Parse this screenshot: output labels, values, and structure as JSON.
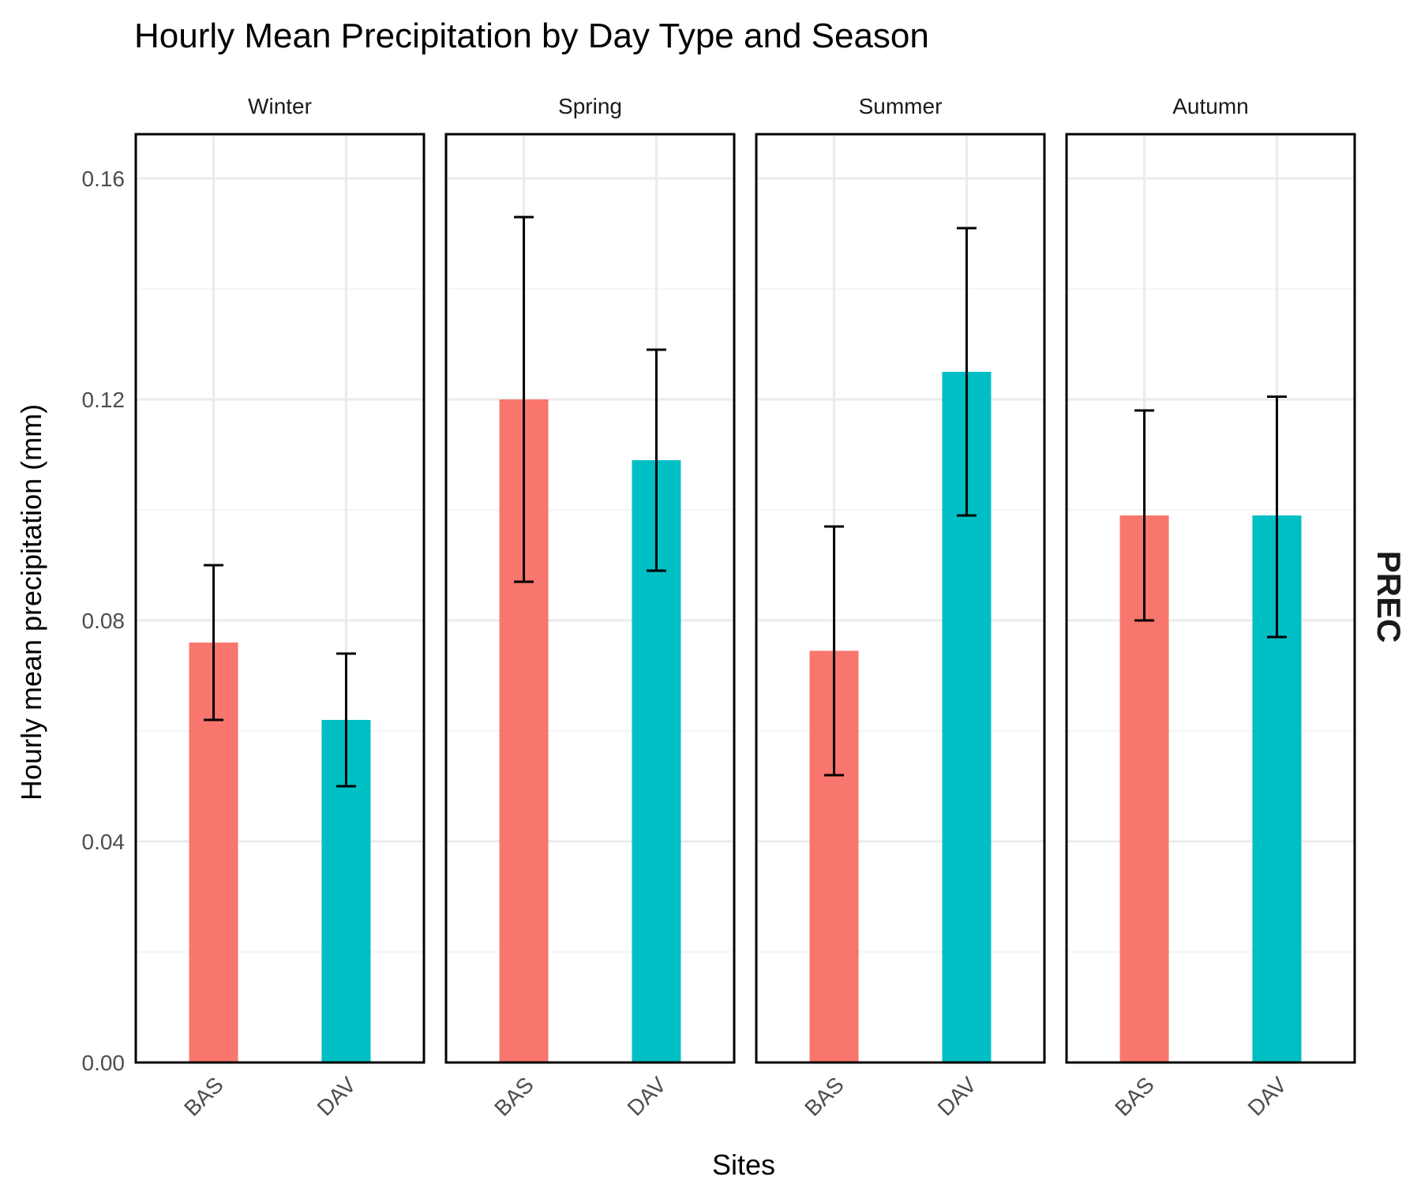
{
  "chart_data": {
    "type": "bar",
    "title": "Hourly Mean Precipitation by Day Type and Season",
    "xlabel": "Sites",
    "ylabel": "Hourly mean precipitation (mm)",
    "row_label": "PREC",
    "ylim": [
      0,
      0.168
    ],
    "y_ticks": [
      0.0,
      0.04,
      0.08,
      0.12,
      0.16
    ],
    "y_tick_labels": [
      "0.00",
      "0.04",
      "0.08",
      "0.12",
      "0.16"
    ],
    "categories": [
      "BAS",
      "DAV"
    ],
    "colors": {
      "BAS": "#F8766D",
      "DAV": "#00BFC4"
    },
    "grid": true,
    "legend": "none",
    "panels": [
      {
        "name": "Winter",
        "values": [
          0.076,
          0.062
        ],
        "error_low": [
          0.062,
          0.05
        ],
        "error_high": [
          0.09,
          0.074
        ]
      },
      {
        "name": "Spring",
        "values": [
          0.12,
          0.109
        ],
        "error_low": [
          0.087,
          0.089
        ],
        "error_high": [
          0.153,
          0.129
        ]
      },
      {
        "name": "Summer",
        "values": [
          0.0745,
          0.125
        ],
        "error_low": [
          0.052,
          0.099
        ],
        "error_high": [
          0.097,
          0.151
        ]
      },
      {
        "name": "Autumn",
        "values": [
          0.099,
          0.099
        ],
        "error_low": [
          0.08,
          0.077
        ],
        "error_high": [
          0.118,
          0.1205
        ]
      }
    ]
  }
}
